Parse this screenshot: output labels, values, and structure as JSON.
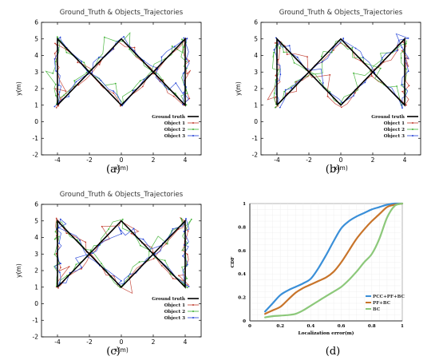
{
  "panels": [
    {
      "label": "(a)",
      "title": "Ground_Truth & Objects_Trajectories",
      "seed": 11
    },
    {
      "label": "(b)",
      "title": "Ground_Truth & Objects_Trajectories",
      "seed": 23
    },
    {
      "label": "(c)",
      "title": "Ground_Truth & Objects_Trajectories",
      "seed": 37
    },
    {
      "label": "(d)",
      "title": ""
    }
  ],
  "trajectory_legend": [
    "Ground truth",
    "Object 1",
    "Object 2",
    "Object 3"
  ],
  "chart_data": [
    {
      "type": "line",
      "panel": "(a)",
      "title": "Ground_Truth & Objects_Trajectories",
      "xlabel": "x(m)",
      "ylabel": "y(m)",
      "xlim": [
        -5,
        5
      ],
      "ylim": [
        -2,
        6
      ],
      "xticks": [
        -4,
        -2,
        0,
        2,
        4
      ],
      "yticks": [
        -2,
        -1,
        0,
        1,
        2,
        3,
        4,
        5,
        6
      ],
      "legend_position": "bottom-right",
      "series": [
        {
          "name": "Ground truth",
          "color": "#000000",
          "x": [
            -4,
            0,
            4,
            4,
            0,
            -4,
            -4
          ],
          "y": [
            1,
            5,
            1,
            5,
            1,
            5,
            1
          ]
        },
        {
          "name": "Object 1",
          "color": "#c0392b"
        },
        {
          "name": "Object 2",
          "color": "#3aaf2f"
        },
        {
          "name": "Object 3",
          "color": "#1f3fd6"
        }
      ]
    },
    {
      "type": "line",
      "panel": "(b)",
      "title": "Ground_Truth & Objects_Trajectories",
      "xlabel": "x(m)",
      "ylabel": "y(m)",
      "xlim": [
        -5,
        5
      ],
      "ylim": [
        -2,
        6
      ],
      "xticks": [
        -4,
        -2,
        0,
        2,
        4
      ],
      "yticks": [
        -2,
        -1,
        0,
        1,
        2,
        3,
        4,
        5,
        6
      ],
      "legend_position": "bottom-right",
      "series": [
        {
          "name": "Ground truth",
          "color": "#000000",
          "x": [
            -4,
            0,
            4,
            4,
            0,
            -4,
            -4
          ],
          "y": [
            1,
            5,
            1,
            5,
            1,
            5,
            1
          ]
        },
        {
          "name": "Object 1",
          "color": "#c0392b"
        },
        {
          "name": "Object 2",
          "color": "#3aaf2f"
        },
        {
          "name": "Object 3",
          "color": "#1f3fd6"
        }
      ]
    },
    {
      "type": "line",
      "panel": "(c)",
      "title": "Ground_Truth & Objects_Trajectories",
      "xlabel": "x(m)",
      "ylabel": "y(m)",
      "xlim": [
        -5,
        5
      ],
      "ylim": [
        -2,
        6
      ],
      "xticks": [
        -4,
        -2,
        0,
        2,
        4
      ],
      "yticks": [
        -2,
        -1,
        0,
        1,
        2,
        3,
        4,
        5,
        6
      ],
      "legend_position": "bottom-right",
      "series": [
        {
          "name": "Ground truth",
          "color": "#000000",
          "x": [
            -4,
            0,
            4,
            4,
            0,
            -4,
            -4
          ],
          "y": [
            1,
            5,
            1,
            5,
            1,
            5,
            1
          ]
        },
        {
          "name": "Object 1",
          "color": "#c0392b"
        },
        {
          "name": "Object 2",
          "color": "#3aaf2f"
        },
        {
          "name": "Object 3",
          "color": "#1f3fd6"
        }
      ]
    },
    {
      "type": "line",
      "panel": "(d)",
      "title": "",
      "xlabel": "Localization error(m)",
      "ylabel": "CDF",
      "xlim": [
        0,
        1
      ],
      "ylim": [
        0,
        1
      ],
      "xticks": [
        0,
        0.2,
        0.4,
        0.6,
        0.8,
        1
      ],
      "yticks": [
        0,
        0.2,
        0.4,
        0.6,
        0.8,
        1
      ],
      "grid": true,
      "legend_position": "center-right",
      "series": [
        {
          "name": "PCC+PF+BC",
          "color": "#3a8fd8",
          "x": [
            0.1,
            0.15,
            0.2,
            0.25,
            0.3,
            0.35,
            0.4,
            0.45,
            0.5,
            0.55,
            0.6,
            0.65,
            0.7,
            0.75,
            0.8,
            0.85,
            0.9,
            0.95,
            1.0
          ],
          "y": [
            0.08,
            0.15,
            0.22,
            0.26,
            0.29,
            0.32,
            0.36,
            0.45,
            0.56,
            0.68,
            0.79,
            0.85,
            0.89,
            0.92,
            0.95,
            0.97,
            0.99,
            1.0,
            1.0
          ]
        },
        {
          "name": "PF+BC",
          "color": "#c8742a",
          "x": [
            0.1,
            0.15,
            0.2,
            0.25,
            0.3,
            0.35,
            0.4,
            0.45,
            0.5,
            0.55,
            0.6,
            0.65,
            0.7,
            0.75,
            0.8,
            0.85,
            0.9,
            0.95,
            1.0
          ],
          "y": [
            0.06,
            0.09,
            0.12,
            0.18,
            0.24,
            0.28,
            0.31,
            0.34,
            0.37,
            0.42,
            0.5,
            0.6,
            0.7,
            0.78,
            0.85,
            0.91,
            0.97,
            0.99,
            1.0
          ]
        },
        {
          "name": "BC",
          "color": "#8cc87a",
          "x": [
            0.1,
            0.15,
            0.2,
            0.25,
            0.3,
            0.35,
            0.4,
            0.45,
            0.5,
            0.55,
            0.6,
            0.65,
            0.7,
            0.75,
            0.8,
            0.85,
            0.9,
            0.95,
            1.0
          ],
          "y": [
            0.03,
            0.04,
            0.045,
            0.05,
            0.06,
            0.09,
            0.13,
            0.17,
            0.21,
            0.25,
            0.29,
            0.35,
            0.42,
            0.5,
            0.57,
            0.7,
            0.88,
            0.98,
            1.0
          ]
        }
      ]
    }
  ]
}
